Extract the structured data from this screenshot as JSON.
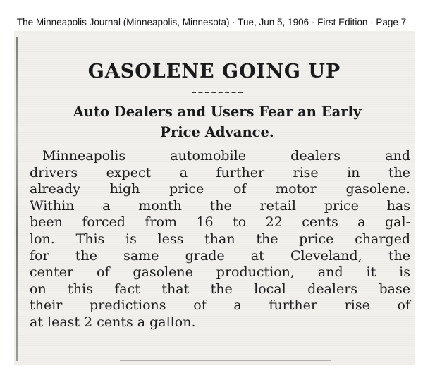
{
  "source": {
    "citation": "The Minneapolis Journal (Minneapolis, Minnesota) · Tue, Jun 5, 1906 · First Edition · Page 7"
  },
  "article": {
    "headline": "GASOLENE GOING UP",
    "subhead_lines": [
      "Auto Dealers and Users Fear an Early",
      "Price Advance."
    ],
    "body_lines": [
      "Minneapolis automobile dealers and",
      "drivers expect a further rise in the",
      "already high price of motor gasolene.",
      "Within a month the retail price has",
      "been forced from 16 to 22 cents a gal-",
      "lon. This is less than the price charged",
      "for the same grade at Cleveland, the",
      "center of gasolene production, and it is",
      "on this fact that the local dealers base",
      "their predictions of a further rise of",
      "at least 2 cents a gallon."
    ]
  }
}
